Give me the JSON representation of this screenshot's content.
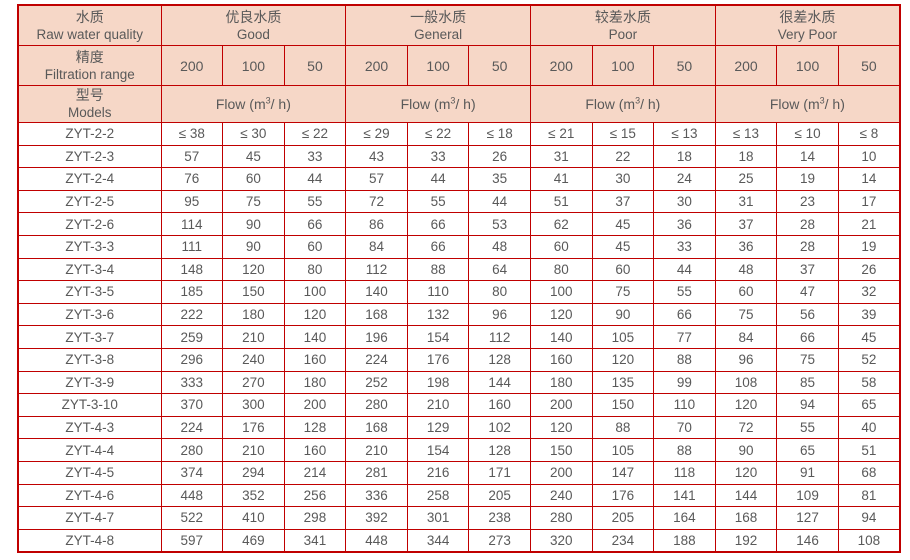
{
  "table": {
    "corner_headers": [
      {
        "cn": "水质",
        "en": "Raw water quality"
      },
      {
        "cn": "精度",
        "en": "Filtration range"
      },
      {
        "cn": "型号",
        "en": "Models"
      }
    ],
    "quality_groups": [
      {
        "cn": "优良水质",
        "en": "Good"
      },
      {
        "cn": "一般水质",
        "en": "General"
      },
      {
        "cn": "较差水质",
        "en": "Poor"
      },
      {
        "cn": "很差水质",
        "en": "Very Poor"
      }
    ],
    "filtration_values": [
      "200",
      "100",
      "50"
    ],
    "flow_label": {
      "prefix": "Flow (m",
      "sup": "3",
      "suffix": "/ h)"
    },
    "rows": [
      {
        "model": "ZYT-2-2",
        "values": [
          "≤ 38",
          "≤ 30",
          "≤ 22",
          "≤ 29",
          "≤ 22",
          "≤ 18",
          "≤ 21",
          "≤ 15",
          "≤ 13",
          "≤ 13",
          "≤ 10",
          "≤ 8"
        ]
      },
      {
        "model": "ZYT-2-3",
        "values": [
          "57",
          "45",
          "33",
          "43",
          "33",
          "26",
          "31",
          "22",
          "18",
          "18",
          "14",
          "10"
        ]
      },
      {
        "model": "ZYT-2-4",
        "values": [
          "76",
          "60",
          "44",
          "57",
          "44",
          "35",
          "41",
          "30",
          "24",
          "25",
          "19",
          "14"
        ]
      },
      {
        "model": "ZYT-2-5",
        "values": [
          "95",
          "75",
          "55",
          "72",
          "55",
          "44",
          "51",
          "37",
          "30",
          "31",
          "23",
          "17"
        ]
      },
      {
        "model": "ZYT-2-6",
        "values": [
          "114",
          "90",
          "66",
          "86",
          "66",
          "53",
          "62",
          "45",
          "36",
          "37",
          "28",
          "21"
        ]
      },
      {
        "model": "ZYT-3-3",
        "values": [
          "111",
          "90",
          "60",
          "84",
          "66",
          "48",
          "60",
          "45",
          "33",
          "36",
          "28",
          "19"
        ]
      },
      {
        "model": "ZYT-3-4",
        "values": [
          "148",
          "120",
          "80",
          "112",
          "88",
          "64",
          "80",
          "60",
          "44",
          "48",
          "37",
          "26"
        ]
      },
      {
        "model": "ZYT-3-5",
        "values": [
          "185",
          "150",
          "100",
          "140",
          "110",
          "80",
          "100",
          "75",
          "55",
          "60",
          "47",
          "32"
        ]
      },
      {
        "model": "ZYT-3-6",
        "values": [
          "222",
          "180",
          "120",
          "168",
          "132",
          "96",
          "120",
          "90",
          "66",
          "75",
          "56",
          "39"
        ]
      },
      {
        "model": "ZYT-3-7",
        "values": [
          "259",
          "210",
          "140",
          "196",
          "154",
          "112",
          "140",
          "105",
          "77",
          "84",
          "66",
          "45"
        ]
      },
      {
        "model": "ZYT-3-8",
        "values": [
          "296",
          "240",
          "160",
          "224",
          "176",
          "128",
          "160",
          "120",
          "88",
          "96",
          "75",
          "52"
        ]
      },
      {
        "model": "ZYT-3-9",
        "values": [
          "333",
          "270",
          "180",
          "252",
          "198",
          "144",
          "180",
          "135",
          "99",
          "108",
          "85",
          "58"
        ]
      },
      {
        "model": "ZYT-3-10",
        "values": [
          "370",
          "300",
          "200",
          "280",
          "210",
          "160",
          "200",
          "150",
          "110",
          "120",
          "94",
          "65"
        ]
      },
      {
        "model": "ZYT-4-3",
        "values": [
          "224",
          "176",
          "128",
          "168",
          "129",
          "102",
          "120",
          "88",
          "70",
          "72",
          "55",
          "40"
        ]
      },
      {
        "model": "ZYT-4-4",
        "values": [
          "280",
          "210",
          "160",
          "210",
          "154",
          "128",
          "150",
          "105",
          "88",
          "90",
          "65",
          "51"
        ]
      },
      {
        "model": "ZYT-4-5",
        "values": [
          "374",
          "294",
          "214",
          "281",
          "216",
          "171",
          "200",
          "147",
          "118",
          "120",
          "91",
          "68"
        ]
      },
      {
        "model": "ZYT-4-6",
        "values": [
          "448",
          "352",
          "256",
          "336",
          "258",
          "205",
          "240",
          "176",
          "141",
          "144",
          "109",
          "81"
        ]
      },
      {
        "model": "ZYT-4-7",
        "values": [
          "522",
          "410",
          "298",
          "392",
          "301",
          "238",
          "280",
          "205",
          "164",
          "168",
          "127",
          "94"
        ]
      },
      {
        "model": "ZYT-4-8",
        "values": [
          "597",
          "469",
          "341",
          "448",
          "344",
          "273",
          "320",
          "234",
          "188",
          "192",
          "146",
          "108"
        ]
      }
    ]
  },
  "colors": {
    "border": "#c00000",
    "header_bg": "#f6d7c7",
    "text": "#595959"
  }
}
